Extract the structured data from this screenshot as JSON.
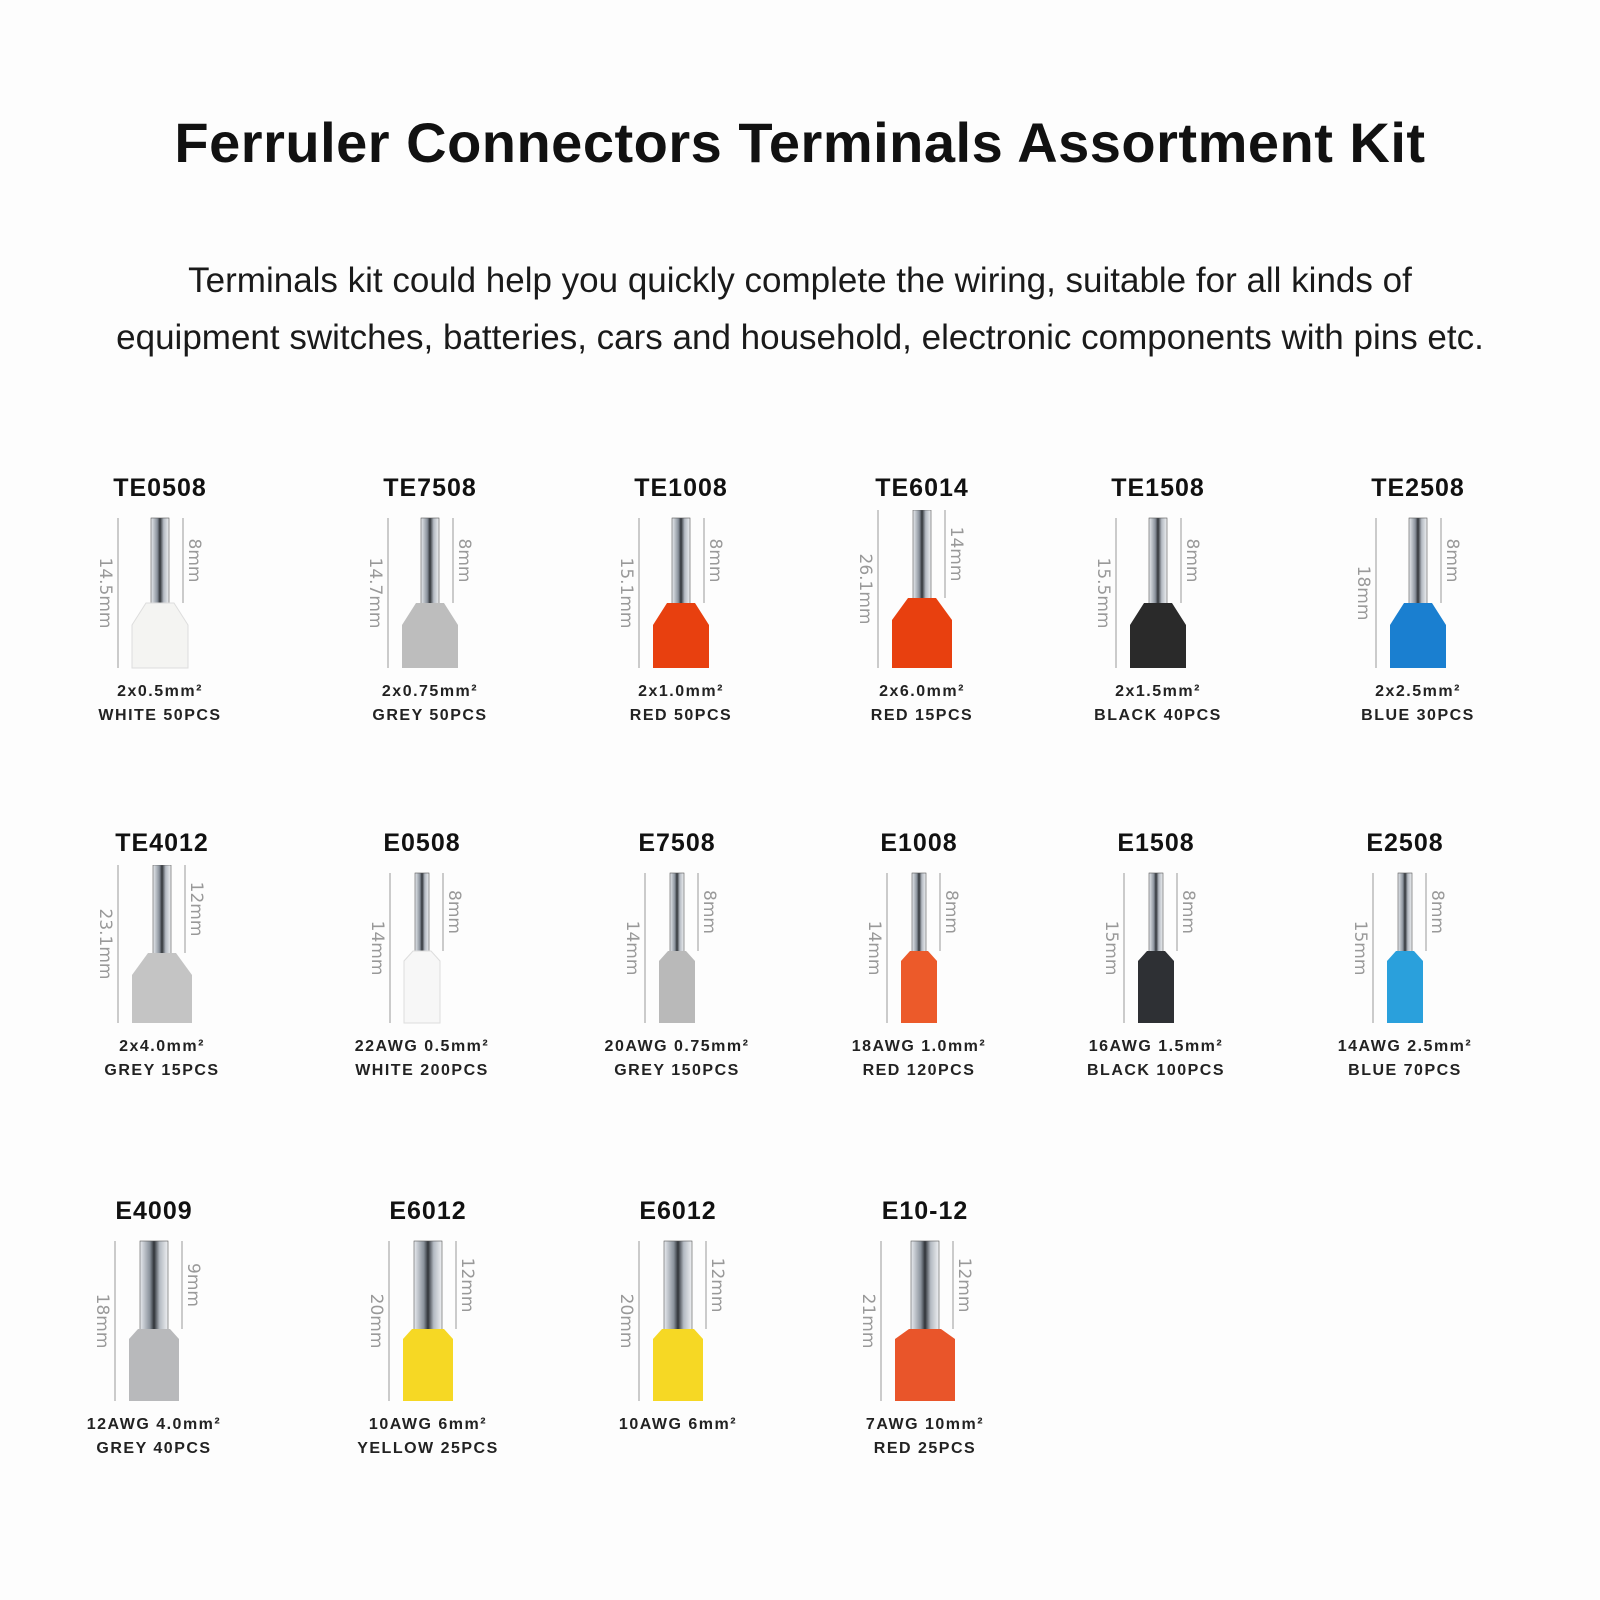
{
  "header": {
    "title": "Ferruler Connectors Terminals Assortment Kit",
    "description_line1": "Terminals kit could help you quickly complete the wiring, suitable for all kinds of",
    "description_line2": "equipment switches, batteries, cars and household, electronic components with pins etc."
  },
  "items": [
    {
      "code": "TE0508",
      "spec": "2x0.5mm²",
      "qty": "WHITE 50PCS",
      "total": "14.5mm",
      "pin": "8mm",
      "type": "twin",
      "color": "#f4f4f2"
    },
    {
      "code": "TE7508",
      "spec": "2x0.75mm²",
      "qty": "GREY 50PCS",
      "total": "14.7mm",
      "pin": "8mm",
      "type": "twin",
      "color": "#bdbdbd"
    },
    {
      "code": "TE1008",
      "spec": "2x1.0mm²",
      "qty": "RED 50PCS",
      "total": "15.1mm",
      "pin": "8mm",
      "type": "twin",
      "color": "#e8400f"
    },
    {
      "code": "TE6014",
      "spec": "2x6.0mm²",
      "qty": "RED 15PCS",
      "total": "26.1mm",
      "pin": "14mm",
      "type": "twin",
      "color": "#e8400f"
    },
    {
      "code": "TE1508",
      "spec": "2x1.5mm²",
      "qty": "BLACK 40PCS",
      "total": "15.5mm",
      "pin": "8mm",
      "type": "twin",
      "color": "#2a2a2a"
    },
    {
      "code": "TE2508",
      "spec": "2x2.5mm²",
      "qty": "BLUE 30PCS",
      "total": "18mm",
      "pin": "8mm",
      "type": "twin",
      "color": "#1a7fd0"
    },
    {
      "code": "TE4012",
      "spec": "2x4.0mm²",
      "qty": "GREY 15PCS",
      "total": "23.1mm",
      "pin": "12mm",
      "type": "twin",
      "color": "#c4c4c4"
    },
    {
      "code": "E0508",
      "spec": "22AWG  0.5mm²",
      "qty": "WHITE 200PCS",
      "total": "14mm",
      "pin": "8mm",
      "type": "single",
      "color": "#f7f7f7"
    },
    {
      "code": "E7508",
      "spec": "20AWG  0.75mm²",
      "qty": "GREY 150PCS",
      "total": "14mm",
      "pin": "8mm",
      "type": "single",
      "color": "#b9b9b9"
    },
    {
      "code": "E1008",
      "spec": "18AWG  1.0mm²",
      "qty": "RED 120PCS",
      "total": "14mm",
      "pin": "8mm",
      "type": "single",
      "color": "#ec5a2a"
    },
    {
      "code": "E1508",
      "spec": "16AWG  1.5mm²",
      "qty": "BLACK 100PCS",
      "total": "15mm",
      "pin": "8mm",
      "type": "single",
      "color": "#2e3034"
    },
    {
      "code": "E2508",
      "spec": "14AWG  2.5mm²",
      "qty": "BLUE 70PCS",
      "total": "15mm",
      "pin": "8mm",
      "type": "single",
      "color": "#2aa0dc"
    },
    {
      "code": "E4009",
      "spec": "12AWG  4.0mm²",
      "qty": "GREY 40PCS",
      "total": "18mm",
      "pin": "9mm",
      "type": "large",
      "color": "#b8b9bb"
    },
    {
      "code": "E6012",
      "spec": "10AWG  6mm²",
      "qty": "YELLOW 25PCS",
      "total": "20mm",
      "pin": "12mm",
      "type": "large",
      "color": "#f6d824"
    },
    {
      "code": "E6012",
      "spec": "10AWG  6mm²",
      "qty": "",
      "total": "20mm",
      "pin": "12mm",
      "type": "large",
      "color": "#f6d824"
    },
    {
      "code": "E10-12",
      "spec": "7AWG  10mm²",
      "qty": "RED 25PCS",
      "total": "21mm",
      "pin": "12mm",
      "type": "large",
      "color": "#e9552a"
    }
  ]
}
